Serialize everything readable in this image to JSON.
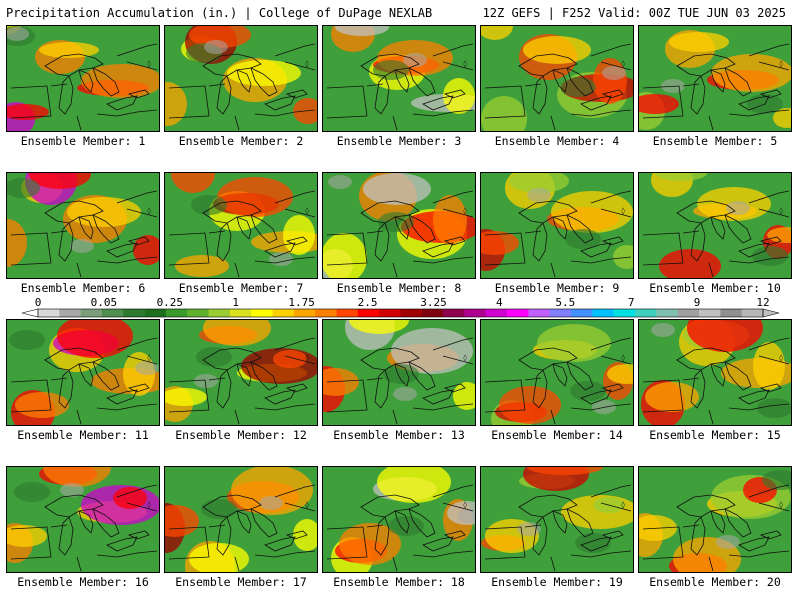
{
  "header": {
    "left": "Precipitation Accumulation (in.) | College of DuPage NEXLAB",
    "right": "12Z GEFS | F252 Valid: 00Z TUE JUN 03 2025"
  },
  "panels": [
    {
      "label": "Ensemble Member: 1"
    },
    {
      "label": "Ensemble Member: 2"
    },
    {
      "label": "Ensemble Member: 3"
    },
    {
      "label": "Ensemble Member: 4"
    },
    {
      "label": "Ensemble Member: 5"
    },
    {
      "label": "Ensemble Member: 6"
    },
    {
      "label": "Ensemble Member: 7"
    },
    {
      "label": "Ensemble Member: 8"
    },
    {
      "label": "Ensemble Member: 9"
    },
    {
      "label": "Ensemble Member: 10"
    },
    {
      "label": "Ensemble Member: 11"
    },
    {
      "label": "Ensemble Member: 12"
    },
    {
      "label": "Ensemble Member: 13"
    },
    {
      "label": "Ensemble Member: 14"
    },
    {
      "label": "Ensemble Member: 15"
    },
    {
      "label": "Ensemble Member: 16"
    },
    {
      "label": "Ensemble Member: 17"
    },
    {
      "label": "Ensemble Member: 18"
    },
    {
      "label": "Ensemble Member: 19"
    },
    {
      "label": "Ensemble Member: 20"
    }
  ],
  "colorbar": {
    "labels": [
      "0",
      "0.05",
      "0.25",
      "1",
      "1.75",
      "2.5",
      "3.25",
      "4",
      "5.5",
      "7",
      "9",
      "12"
    ],
    "colors": [
      "#d8d8d8",
      "#a8a8a8",
      "#7a9f7a",
      "#4f8f4f",
      "#2f7a2f",
      "#1f6f1f",
      "#3a9a2a",
      "#5fb02f",
      "#9acd32",
      "#d8e020",
      "#ffff00",
      "#ffd000",
      "#ffa500",
      "#ff7f00",
      "#ff4500",
      "#ff0000",
      "#d00000",
      "#a00000",
      "#800010",
      "#900050",
      "#b00090",
      "#d000d0",
      "#ff00ff",
      "#c060ff",
      "#8080ff",
      "#4090ff",
      "#00c0ff",
      "#00e0e0",
      "#40d0c0",
      "#80c0b0",
      "#a0a0a0",
      "#c0c0c0",
      "#909090",
      "#b8b8b8"
    ]
  }
}
